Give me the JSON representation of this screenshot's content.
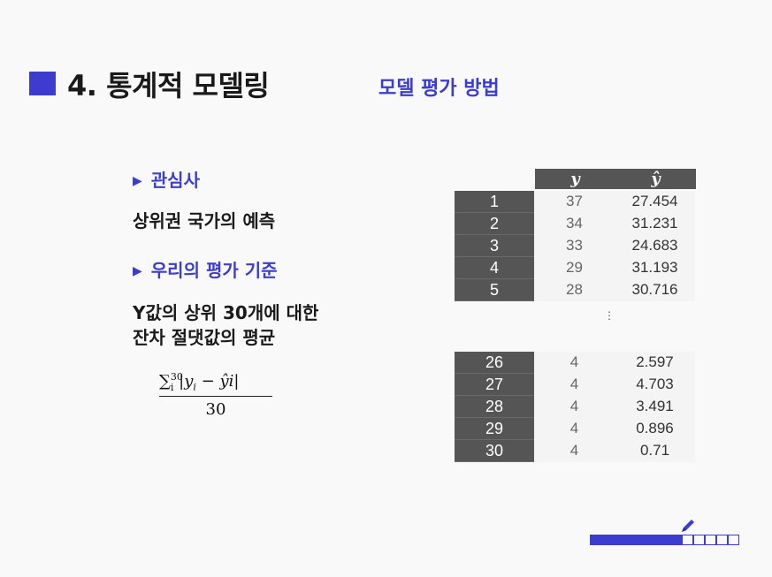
{
  "slide": {
    "title": "4. 통계적 모델링",
    "subtitle": "모델 평가 방법",
    "accent_color": "#3c3cd0"
  },
  "left": {
    "bullet1": "관심사",
    "text1": "상위권 국가의 예측",
    "bullet2": "우리의 평가 기준",
    "text2_line1": "Y값의 상위 30개에 대한",
    "text2_line2": "잔차 절댓값의 평균",
    "formula": {
      "sum": "∑",
      "sup": "30",
      "sub": "i",
      "body_y": "y",
      "body_sub": "i",
      "minus": "−",
      "body_yhat": "ŷi",
      "denominator": "30"
    }
  },
  "table": {
    "headers": [
      "y",
      "ŷ"
    ],
    "top_rows": [
      {
        "idx": "1",
        "y": "37",
        "yhat": "27.454"
      },
      {
        "idx": "2",
        "y": "34",
        "yhat": "31.231"
      },
      {
        "idx": "3",
        "y": "33",
        "yhat": "24.683"
      },
      {
        "idx": "4",
        "y": "29",
        "yhat": "31.193"
      },
      {
        "idx": "5",
        "y": "28",
        "yhat": "30.716"
      }
    ],
    "ellipsis": "⋮",
    "bottom_rows": [
      {
        "idx": "26",
        "y": "4",
        "yhat": "2.597"
      },
      {
        "idx": "27",
        "y": "4",
        "yhat": "4.703"
      },
      {
        "idx": "28",
        "y": "4",
        "yhat": "3.491"
      },
      {
        "idx": "29",
        "y": "4",
        "yhat": "0.896"
      },
      {
        "idx": "30",
        "y": "4",
        "yhat": "0.71"
      }
    ]
  },
  "progress": {
    "filled": 8,
    "total": 13,
    "icon": "pencil-icon"
  }
}
